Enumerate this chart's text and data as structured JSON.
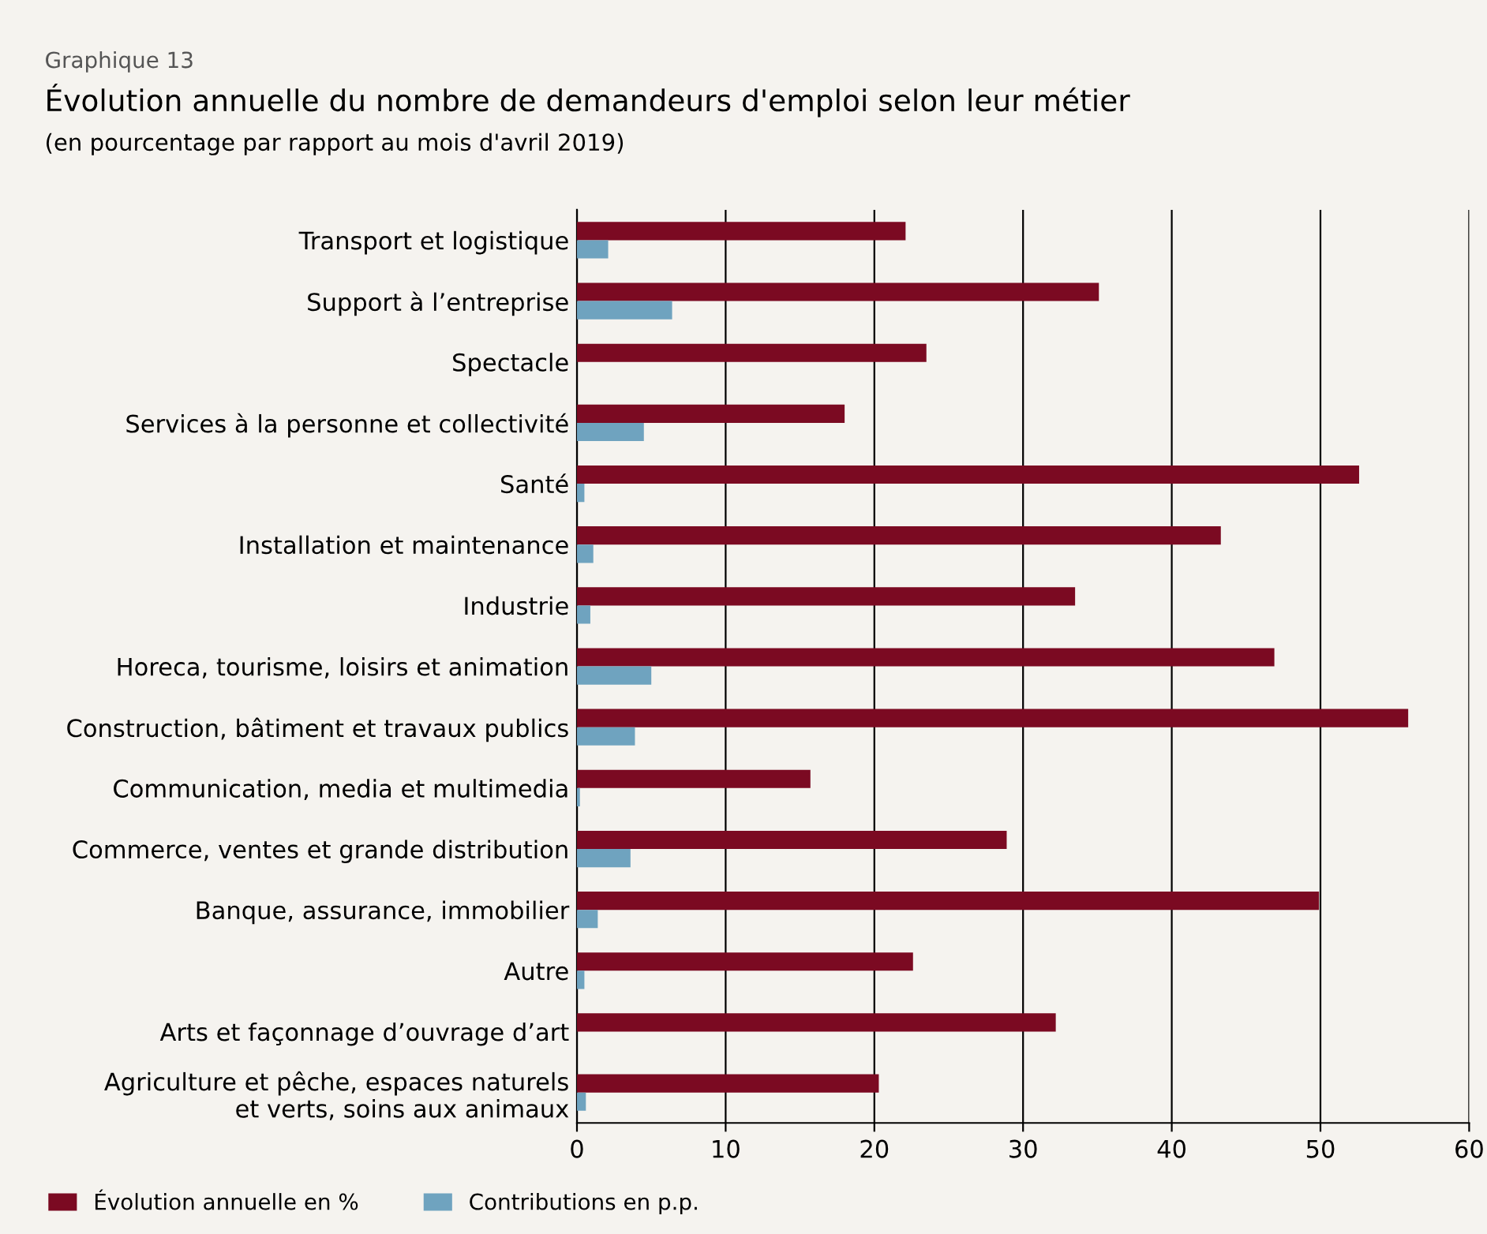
{
  "chart_data": {
    "type": "bar",
    "orientation": "horizontal",
    "title": "Évolution annuelle du nombre de demandeurs d'emploi selon leur métier",
    "subtitle": "(en pourcentage par rapport au mois d'avril 2019)",
    "annotations": [
      "Graphique 13"
    ],
    "categories": [
      "Transport et logistique",
      "Support à l’entreprise",
      "Spectacle",
      "Services à la personne et collectivité",
      "Santé",
      "Installation et maintenance",
      "Industrie",
      "Horeca, tourisme, loisirs et animation",
      "Construction, bâtiment et travaux publics",
      "Communication, media et multimedia",
      "Commerce, ventes et grande distribution",
      "Banque, assurance, immobilier",
      "Autre",
      "Arts et façonnage d’ouvrage d’art",
      "Agriculture et pêche, espaces naturels\net verts, soins aux animaux"
    ],
    "series": [
      {
        "name": "Évolution annuelle en %",
        "color": "#7b0a22",
        "values": [
          22.1,
          35.1,
          23.5,
          18.0,
          52.6,
          43.3,
          33.5,
          46.9,
          55.9,
          15.7,
          28.9,
          49.9,
          22.6,
          32.2,
          20.3
        ]
      },
      {
        "name": "Contributions en p.p.",
        "color": "#6fa3bf",
        "values": [
          2.1,
          6.4,
          0.0,
          4.5,
          0.5,
          1.1,
          0.9,
          5.0,
          3.9,
          0.2,
          3.6,
          1.4,
          0.5,
          0.0,
          0.6
        ]
      }
    ],
    "xlim": [
      0,
      60
    ],
    "xticks": [
      0,
      10,
      20,
      30,
      40,
      50,
      60
    ],
    "grid": "x",
    "legend": "bottom left"
  }
}
